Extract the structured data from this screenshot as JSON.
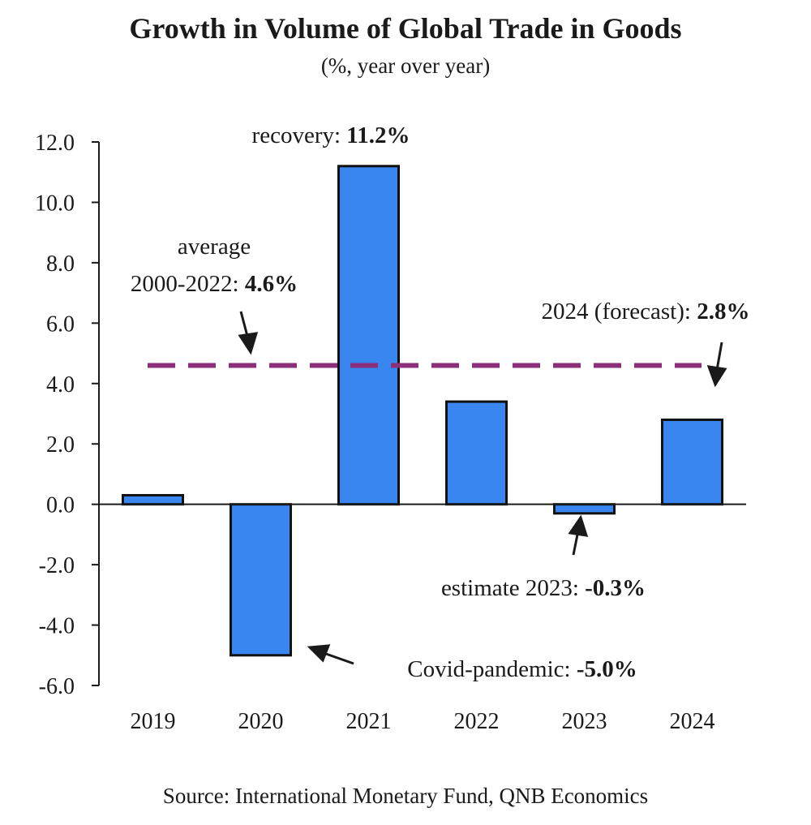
{
  "chart_data": {
    "type": "bar",
    "title": "Growth in Volume of Global Trade in Goods",
    "subtitle": "(%, year over year)",
    "source": "Source: International Monetary Fund, QNB Economics",
    "categories": [
      "2019",
      "2020",
      "2021",
      "2022",
      "2023",
      "2024"
    ],
    "values": [
      0.3,
      -5.0,
      11.2,
      3.4,
      -0.3,
      2.8
    ],
    "ylim": [
      -6.0,
      12.0
    ],
    "yticks": [
      "12.0",
      "10.0",
      "8.0",
      "6.0",
      "4.0",
      "2.0",
      "0.0",
      "-2.0",
      "-4.0",
      "-6.0"
    ],
    "ytick_values": [
      12,
      10,
      8,
      6,
      4,
      2,
      0,
      -2,
      -4,
      -6
    ],
    "grid": false,
    "bar_color": "#3a86f0",
    "average_line": {
      "value": 4.6,
      "color": "#8b2f7a"
    },
    "annotations": {
      "recovery": {
        "prefix": "recovery: ",
        "value": "11.2%"
      },
      "average": {
        "line1": "average",
        "prefix": "2000-2022: ",
        "value": "4.6%"
      },
      "forecast": {
        "prefix": "2024 (forecast): ",
        "value": "2.8%"
      },
      "estimate": {
        "prefix": "estimate 2023: ",
        "value": "-0.3%"
      },
      "covid": {
        "prefix": "Covid-pandemic: ",
        "value": "-5.0%"
      }
    }
  }
}
